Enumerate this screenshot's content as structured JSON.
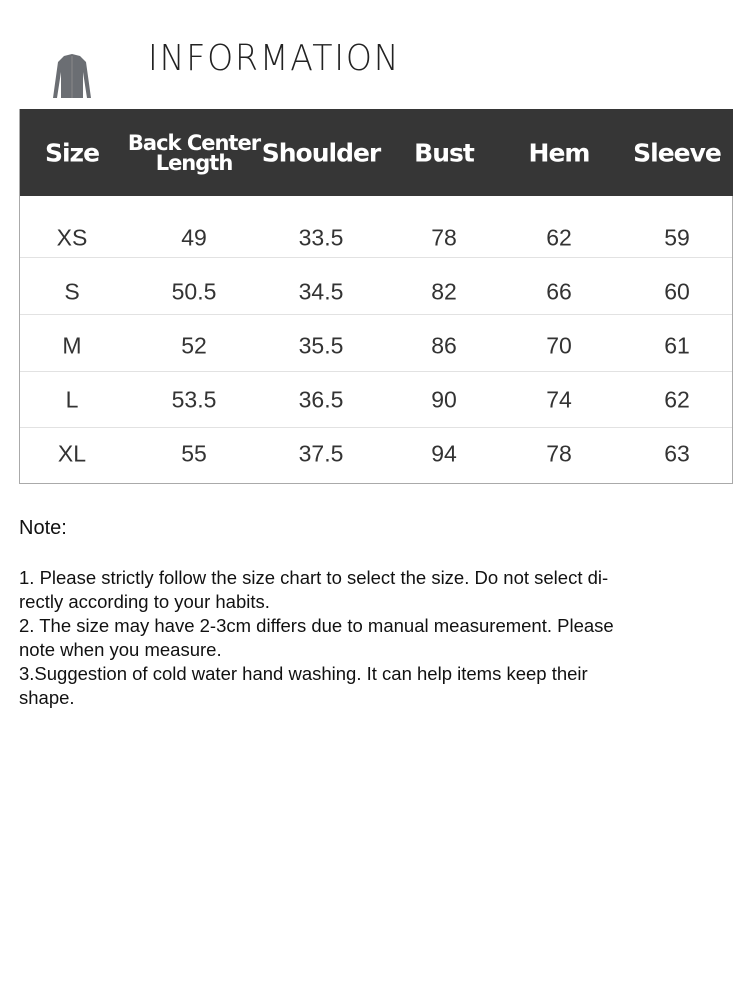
{
  "header": {
    "title": "INFORMATION",
    "thumbnail": "cardigan-image"
  },
  "table": {
    "columns": [
      "Size",
      "Back Center Length",
      "Shoulder",
      "Bust",
      "Hem",
      "Sleeve"
    ],
    "rows": [
      [
        "XS",
        "49",
        "33.5",
        "78",
        "62",
        "59"
      ],
      [
        "S",
        "50.5",
        "34.5",
        "82",
        "66",
        "60"
      ],
      [
        "M",
        "52",
        "35.5",
        "86",
        "70",
        "61"
      ],
      [
        "L",
        "53.5",
        "36.5",
        "90",
        "74",
        "62"
      ],
      [
        "XL",
        "55",
        "37.5",
        "94",
        "78",
        "63"
      ]
    ]
  },
  "notes": {
    "heading": "Note:",
    "lines": [
      "1. Please strictly follow the size chart  to select the size. Do not select di-",
      "rectly according to your habits.",
      "2. The size may have 2-3cm differs due to manual measurement. Please",
      "note when you measure.",
      "3.Suggestion of cold water hand washing. It can help items keep their",
      "shape."
    ]
  }
}
